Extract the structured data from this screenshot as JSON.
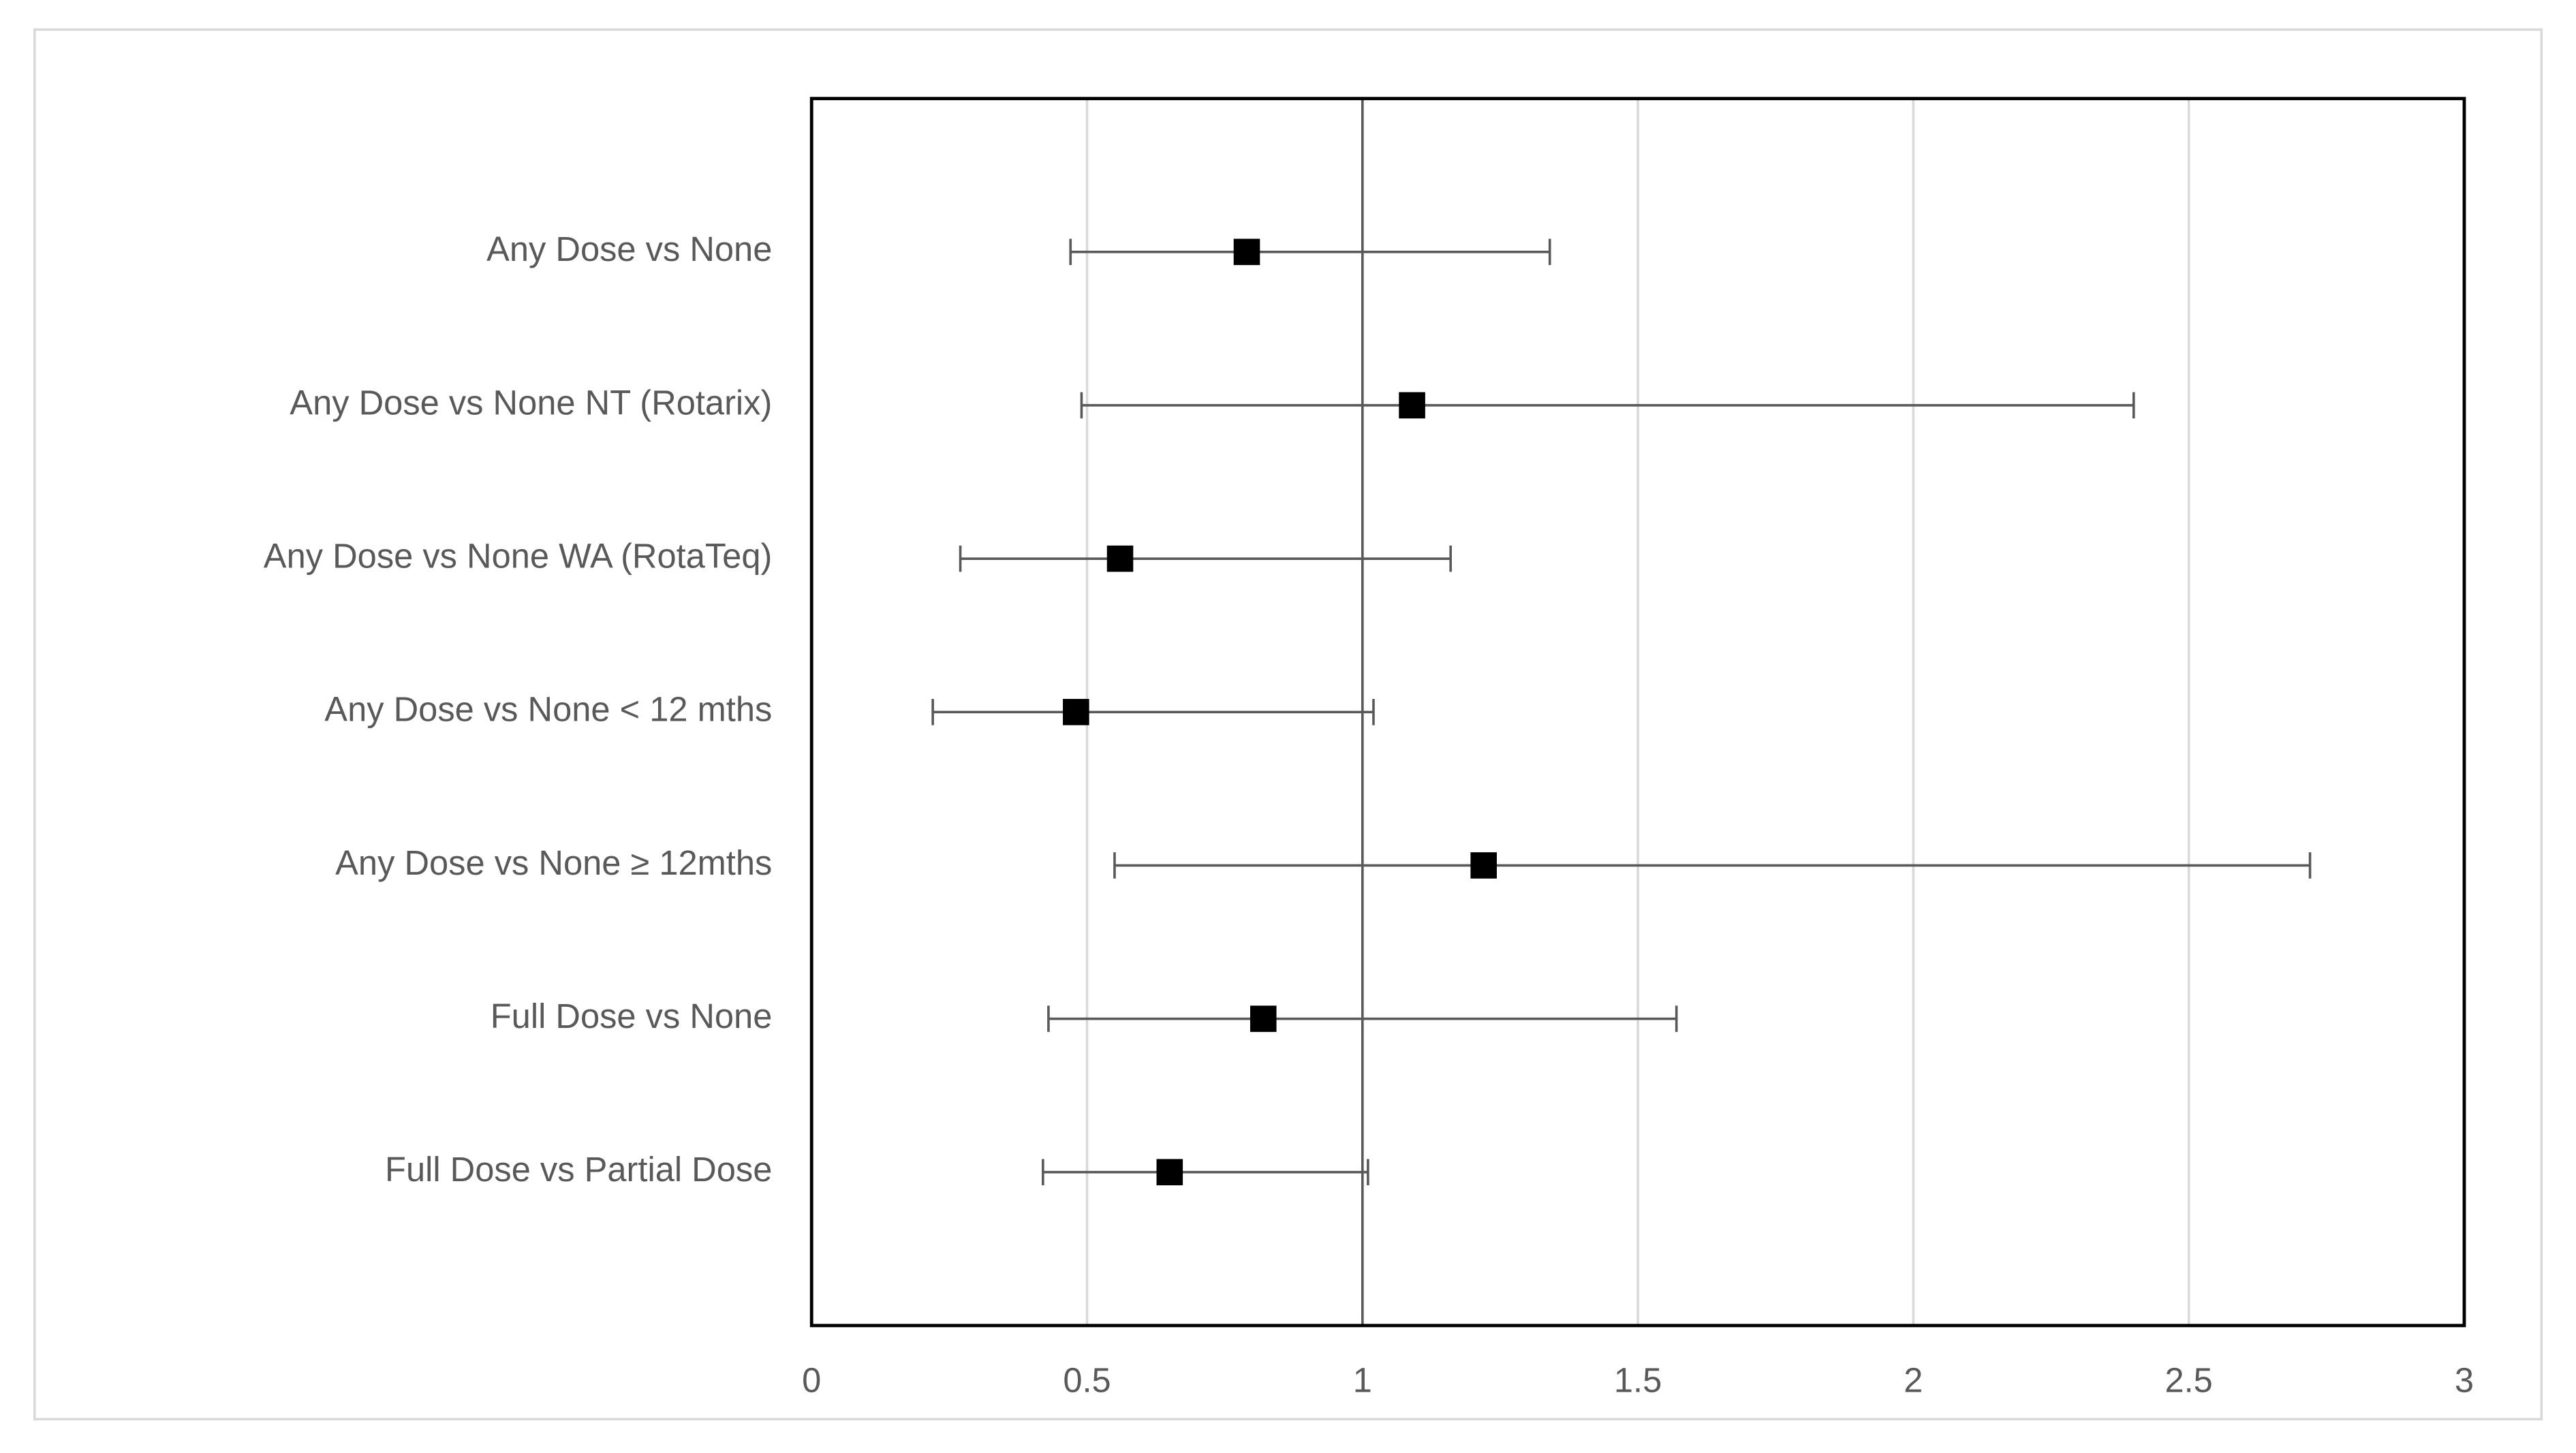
{
  "chart_data": {
    "type": "forest",
    "categories": [
      "Any Dose vs None",
      "Any Dose vs None NT (Rotarix)",
      "Any Dose vs None WA (RotaTeq)",
      "Any Dose vs None < 12 mths",
      "Any Dose vs None ≥ 12mths",
      "Full Dose vs None",
      "Full Dose vs Partial Dose"
    ],
    "values": [
      0.79,
      1.09,
      0.56,
      0.48,
      1.22,
      0.82,
      0.65
    ],
    "lower": [
      0.47,
      0.49,
      0.27,
      0.22,
      0.55,
      0.43,
      0.42
    ],
    "upper": [
      1.34,
      2.4,
      1.16,
      1.02,
      2.72,
      1.57,
      1.01
    ],
    "color": "#000000",
    "xlim": [
      0,
      3
    ],
    "xticks": [
      0,
      0.5,
      1,
      1.5,
      2,
      2.5,
      3
    ],
    "grid": true,
    "reference_line": 1
  }
}
